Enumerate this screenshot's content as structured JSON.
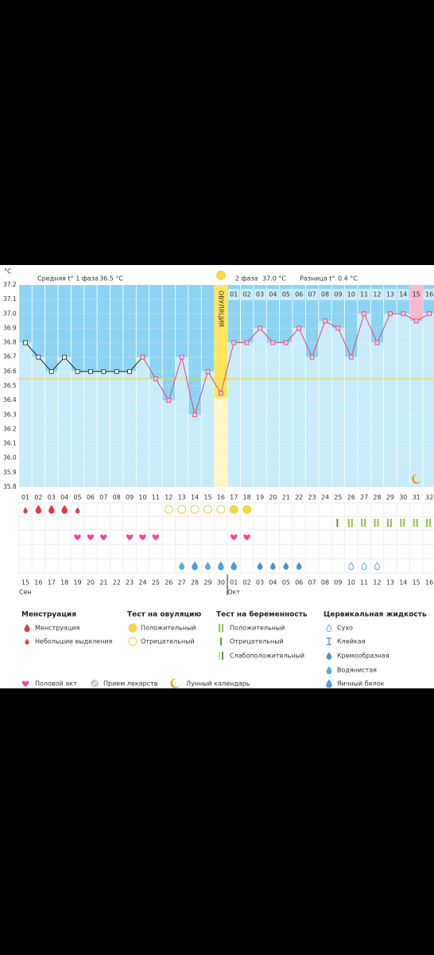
{
  "header": {
    "unit": "°C",
    "phase1_label": "Средняя t° 1 фаза",
    "phase1_value": "36.5 °C",
    "phase2_label": "2 фаза",
    "phase2_value": "37.0 °C",
    "diff_label": "Разница t°",
    "diff_value": "0.4 °C"
  },
  "chart_data": {
    "type": "line",
    "categories": [
      "01",
      "02",
      "03",
      "04",
      "05",
      "06",
      "07",
      "08",
      "09",
      "10",
      "11",
      "12",
      "13",
      "14",
      "15",
      "16",
      "17",
      "18",
      "19",
      "20",
      "21",
      "22",
      "23",
      "24",
      "25",
      "26",
      "27",
      "28",
      "29",
      "30",
      "31",
      "32"
    ],
    "series": [
      {
        "color": "#222222",
        "values": [
          36.8,
          36.7,
          36.6,
          36.7,
          36.6,
          36.6,
          36.6,
          36.6,
          36.6,
          36.7,
          null,
          null,
          null,
          null,
          null,
          null,
          null,
          null,
          null,
          null,
          null,
          null,
          null,
          null,
          null,
          null,
          null,
          null,
          null,
          null,
          null,
          null
        ]
      },
      {
        "color": "#e0457b",
        "values": [
          null,
          null,
          null,
          null,
          null,
          null,
          null,
          null,
          null,
          36.7,
          36.55,
          36.4,
          36.7,
          36.3,
          36.6,
          36.45,
          36.8,
          36.8,
          36.9,
          36.8,
          36.8,
          36.9,
          36.7,
          36.95,
          36.9,
          36.7,
          37.0,
          36.8,
          37.0,
          37.0,
          36.95,
          37.0
        ]
      }
    ],
    "ylim": [
      35.8,
      37.2
    ],
    "yticks": [
      37.2,
      37.1,
      {
        "value": 37.0,
        "label": "37.0"
      },
      36.9,
      36.8,
      36.7,
      36.6,
      36.5,
      36.4,
      36.3,
      36.2,
      36.1,
      {
        "value": 36.0,
        "label": "36.0"
      },
      35.9,
      35.8
    ],
    "grid": true,
    "cover_line": 36.55,
    "ovulation_day": 16,
    "ovulation_label": "ОВУЛЯЦИЯ",
    "phase2_dates": [
      "01",
      "02",
      "03",
      "04",
      "05",
      "06",
      "07",
      "08",
      "09",
      "10",
      "11",
      "12",
      "13",
      "14",
      "15",
      "16"
    ],
    "highlight_day": 31
  },
  "events": {
    "menstruation_days": [
      2,
      3,
      4
    ],
    "spotting_days": [
      1,
      5
    ],
    "ovulation_negative_days": [
      12,
      13,
      14,
      15,
      16
    ],
    "ovulation_positive_days": [
      17,
      18
    ],
    "pregnancy_negative_days": [
      25
    ],
    "pregnancy_positive_days": [
      26,
      27,
      28,
      29,
      30,
      31,
      32
    ],
    "intercourse_days": [
      5,
      6,
      7,
      9,
      10,
      11,
      17,
      18
    ],
    "watery_days": [
      13,
      15
    ],
    "egg_white_days": [
      14,
      16,
      17
    ],
    "creamy_days": [
      19,
      20,
      21,
      22
    ],
    "dry_days": [
      26,
      27,
      28
    ],
    "moon_days": [
      31
    ]
  },
  "calendar": {
    "dates": [
      "15",
      "16",
      "17",
      "18",
      "19",
      "20",
      "21",
      "22",
      "23",
      "24",
      "25",
      "26",
      "27",
      "28",
      "29",
      "30",
      "01",
      "02",
      "03",
      "04",
      "05",
      "06",
      "07",
      "08",
      "09",
      "10",
      "11",
      "12",
      "13",
      "14",
      "15",
      "16"
    ],
    "weekend_days": [
      3,
      4,
      10,
      11,
      17,
      18,
      24,
      25,
      31,
      32
    ],
    "months": [
      {
        "label": "Сен",
        "day": 1
      },
      {
        "label": "Окт",
        "day": 17
      }
    ]
  },
  "legend": {
    "groups": [
      {
        "title": "Менструация",
        "items": [
          "Менструация",
          "Небольшие выделения"
        ]
      },
      {
        "title": "Тест на овуляцию",
        "items": [
          "Положительный",
          "Отрицательный"
        ]
      },
      {
        "title": "Тест на беременность",
        "items": [
          "Положительный",
          "Отрицательный",
          "Слабоположительный"
        ]
      },
      {
        "title": "Цервикальная жидкость",
        "items": [
          "Сухо",
          "Клейкая",
          "Кремообразная",
          "Водянистая",
          "Яичный белок"
        ]
      }
    ],
    "extra": [
      "Половой акт",
      "Прием лекарств",
      "Лунный календарь"
    ]
  }
}
